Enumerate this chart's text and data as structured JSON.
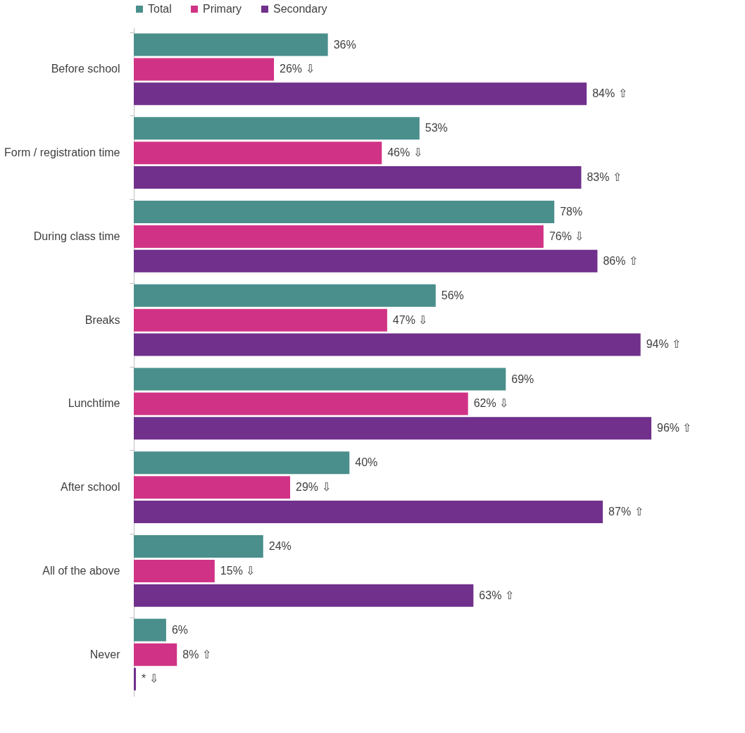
{
  "chart_data": {
    "type": "bar",
    "orientation": "horizontal",
    "legend": "top",
    "categories": [
      "Before school",
      "Form / registration time",
      "During class time",
      "Breaks",
      "Lunchtime",
      "After school",
      "All of the above",
      "Never"
    ],
    "series": [
      {
        "name": "Total",
        "color": "#4a8f8c",
        "values": [
          36,
          53,
          78,
          56,
          69,
          40,
          24,
          6
        ],
        "value_labels": [
          "36%",
          "53%",
          "78%",
          "56%",
          "69%",
          "40%",
          "24%",
          "6%"
        ]
      },
      {
        "name": "Primary",
        "color": "#d03385",
        "values": [
          26,
          46,
          76,
          47,
          62,
          29,
          15,
          8
        ],
        "value_labels": [
          "26% ⇩",
          "46% ⇩",
          "76% ⇩",
          "47% ⇩",
          "62% ⇩",
          "29% ⇩",
          "15% ⇩",
          "8% ⇧"
        ]
      },
      {
        "name": "Secondary",
        "color": "#70308c",
        "values": [
          84,
          83,
          86,
          94,
          96,
          87,
          63,
          0.4
        ],
        "value_labels": [
          "84% ⇧",
          "83% ⇧",
          "86% ⇧",
          "94% ⇧",
          "96% ⇧",
          "87% ⇧",
          "63% ⇧",
          "* ⇩"
        ]
      }
    ]
  }
}
